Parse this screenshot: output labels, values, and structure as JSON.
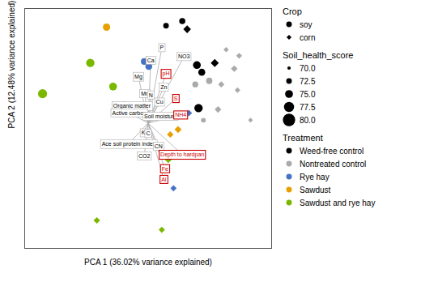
{
  "chart_data": {
    "type": "biplot",
    "xlabel": "PCA 1 (36.02% variance explained)",
    "ylabel": "PCA 2 (12.48% variance explained)",
    "xlim": [
      -3.8,
      3.8
    ],
    "ylim": [
      -3.5,
      3.2
    ],
    "tick_labels": false,
    "arrow_color": "#aaaaaa",
    "highlight_color": "#cc0000",
    "arrows": [
      {
        "label": "P",
        "x": 0.42,
        "y": 2.1,
        "highlight": false
      },
      {
        "label": "Ca",
        "x": 0.08,
        "y": 1.75,
        "highlight": false
      },
      {
        "label": "Mg",
        "x": -0.3,
        "y": 1.3,
        "highlight": false
      },
      {
        "label": "NO3",
        "x": 1.1,
        "y": 1.85,
        "highlight": false
      },
      {
        "label": "pH",
        "x": 0.55,
        "y": 1.38,
        "highlight": true
      },
      {
        "label": "Zn",
        "x": 0.48,
        "y": 1.0,
        "highlight": false
      },
      {
        "label": "Mn",
        "x": -0.1,
        "y": 0.82,
        "highlight": false
      },
      {
        "label": "N",
        "x": 0.08,
        "y": 0.78,
        "highlight": false
      },
      {
        "label": "S",
        "x": 0.85,
        "y": 0.68,
        "highlight": true
      },
      {
        "label": "Cu",
        "x": 0.35,
        "y": 0.58,
        "highlight": false
      },
      {
        "label": "Organic matter",
        "x": -0.5,
        "y": 0.48,
        "highlight": false
      },
      {
        "label": "Active carbon",
        "x": -0.58,
        "y": 0.28,
        "highlight": false
      },
      {
        "label": "Soil moisture",
        "x": 0.38,
        "y": 0.18,
        "highlight": false
      },
      {
        "label": "NH4",
        "x": 1.0,
        "y": 0.22,
        "highlight": true
      },
      {
        "label": "K",
        "x": -0.15,
        "y": -0.28,
        "highlight": false
      },
      {
        "label": "C",
        "x": 0.0,
        "y": -0.3,
        "highlight": false
      },
      {
        "label": "Ace soil protein index",
        "x": -0.6,
        "y": -0.58,
        "highlight": false
      },
      {
        "label": "CN",
        "x": 0.32,
        "y": -0.65,
        "highlight": false
      },
      {
        "label": "CO2",
        "x": -0.12,
        "y": -0.92,
        "highlight": false
      },
      {
        "label": "Depth to hardpan",
        "x": 1.05,
        "y": -0.88,
        "highlight": true
      },
      {
        "label": "Fe",
        "x": 0.52,
        "y": -1.28,
        "highlight": true
      },
      {
        "label": "Al",
        "x": 0.48,
        "y": -1.58,
        "highlight": true
      }
    ],
    "points": {
      "x": [
        1.05,
        1.2,
        0.55,
        2.4,
        2.8,
        2.05,
        2.65,
        1.5,
        1.65,
        1.88,
        2.25,
        1.45,
        2.75,
        3.15,
        2.15,
        1.55,
        1.7,
        1.25,
        -0.12,
        0.02,
        -0.72,
        0.78,
        -1.28,
        -0.58,
        -0.82,
        0.68,
        0.92,
        -3.25,
        -1.78,
        -1.08,
        -0.48,
        0.62,
        -1.58,
        0.42
      ],
      "y": [
        2.85,
        2.62,
        2.72,
        2.05,
        1.88,
        1.68,
        1.52,
        1.62,
        1.42,
        1.18,
        1.08,
        1.08,
        0.92,
        0.08,
        0.38,
        0.42,
        0.08,
        0.28,
        1.72,
        1.58,
        0.52,
        -1.82,
        2.68,
        0.46,
        -0.6,
        -0.32,
        -0.18,
        0.82,
        1.68,
        1.02,
        0.42,
        -1.02,
        -2.72,
        -2.98
      ],
      "colors": [
        "#000000",
        "#000000",
        "#000000",
        "#aaaaaa",
        "#aaaaaa",
        "#000000",
        "#aaaaaa",
        "#000000",
        "#000000",
        "#aaaaaa",
        "#aaaaaa",
        "#aaaaaa",
        "#aaaaaa",
        "#aaaaaa",
        "#aaaaaa",
        "#000000",
        "#aaaaaa",
        "#4472c4",
        "#4472c4",
        "#4472c4",
        "#4472c4",
        "#4472c4",
        "#e8a000",
        "#e8a000",
        "#e8a000",
        "#e8a000",
        "#e8a000",
        "#7ab800",
        "#7ab800",
        "#7ab800",
        "#7ab800",
        "#7ab800",
        "#7ab800",
        "#7ab800"
      ],
      "markers": [
        "circle",
        "diamond",
        "circle",
        "diamond",
        "diamond",
        "diamond",
        "diamond",
        "circle",
        "circle",
        "circle",
        "diamond",
        "circle",
        "diamond",
        "diamond",
        "diamond",
        "circle",
        "circle",
        "diamond",
        "circle",
        "circle",
        "circle",
        "diamond",
        "circle",
        "circle",
        "circle",
        "diamond",
        "diamond",
        "circle",
        "circle",
        "circle",
        "circle",
        "diamond",
        "diamond",
        "diamond"
      ],
      "sizes": [
        30,
        38,
        25,
        18,
        22,
        42,
        28,
        48,
        38,
        32,
        25,
        28,
        20,
        15,
        28,
        55,
        18,
        28,
        35,
        38,
        28,
        25,
        42,
        38,
        45,
        28,
        32,
        65,
        55,
        48,
        38,
        32,
        28,
        25
      ]
    },
    "legend": "right",
    "legend_sections": [
      {
        "title": "Crop",
        "entries": [
          {
            "label": "soy",
            "marker": "circle",
            "color": "#000000"
          },
          {
            "label": "corn",
            "marker": "diamond",
            "color": "#000000"
          }
        ]
      },
      {
        "title": "Soil_health_score",
        "entries": [
          {
            "label": "70.0",
            "marker": "circle",
            "color": "#000000",
            "size": 3
          },
          {
            "label": "72.5",
            "marker": "circle",
            "color": "#000000",
            "size": 5
          },
          {
            "label": "75.0",
            "marker": "circle",
            "color": "#000000",
            "size": 7
          },
          {
            "label": "77.5",
            "marker": "circle",
            "color": "#000000",
            "size": 9
          },
          {
            "label": "80.0",
            "marker": "circle",
            "color": "#000000",
            "size": 11
          }
        ]
      },
      {
        "title": "Treatment",
        "entries": [
          {
            "label": "Weed-free control",
            "marker": "circle",
            "color": "#000000"
          },
          {
            "label": "Nontreated control",
            "marker": "circle",
            "color": "#aaaaaa"
          },
          {
            "label": "Rye hay",
            "marker": "circle",
            "color": "#4472c4"
          },
          {
            "label": "Sawdust",
            "marker": "circle",
            "color": "#e8a000"
          },
          {
            "label": "Sawdust and rye hay",
            "marker": "circle",
            "color": "#7ab800"
          }
        ]
      }
    ]
  }
}
